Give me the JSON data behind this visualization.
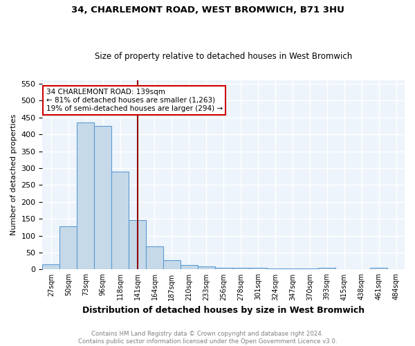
{
  "title": "34, CHARLEMONT ROAD, WEST BROMWICH, B71 3HU",
  "subtitle": "Size of property relative to detached houses in West Bromwich",
  "xlabel": "Distribution of detached houses by size in West Bromwich",
  "ylabel": "Number of detached properties",
  "bar_labels": [
    "27sqm",
    "50sqm",
    "73sqm",
    "96sqm",
    "118sqm",
    "141sqm",
    "164sqm",
    "187sqm",
    "210sqm",
    "233sqm",
    "256sqm",
    "278sqm",
    "301sqm",
    "324sqm",
    "347sqm",
    "370sqm",
    "393sqm",
    "415sqm",
    "438sqm",
    "461sqm",
    "484sqm"
  ],
  "bar_heights": [
    15,
    127,
    435,
    425,
    290,
    147,
    68,
    28,
    13,
    9,
    5,
    4,
    4,
    2,
    2,
    2,
    5,
    0,
    0,
    6,
    0
  ],
  "bar_color": "#c6d9e8",
  "bar_edgecolor": "#5b9bd5",
  "vline_x_index": 5,
  "vline_color": "#8b0000",
  "annotation_text": "34 CHARLEMONT ROAD: 139sqm\n← 81% of detached houses are smaller (1,263)\n19% of semi-detached houses are larger (294) →",
  "annotation_box_color": "white",
  "annotation_box_edgecolor": "#cc0000",
  "ylim": [
    0,
    560
  ],
  "yticks": [
    0,
    50,
    100,
    150,
    200,
    250,
    300,
    350,
    400,
    450,
    500,
    550
  ],
  "footer_line1": "Contains HM Land Registry data © Crown copyright and database right 2024.",
  "footer_line2": "Contains public sector information licensed under the Open Government Licence v3.0.",
  "background_color": "#eef4fb",
  "grid_color": "white"
}
